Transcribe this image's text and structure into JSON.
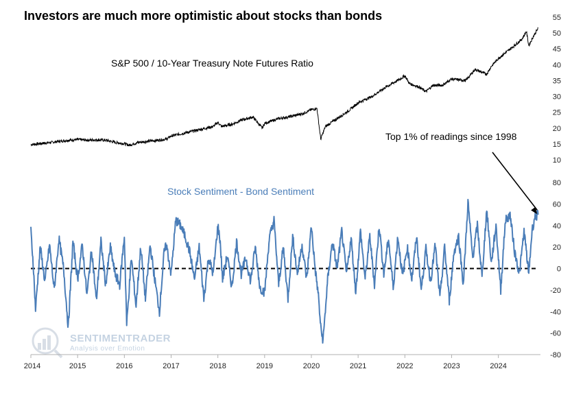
{
  "title": "Investors are much more optimistic about stocks than bonds",
  "watermark": {
    "brand": "SENTIMENTRADER",
    "tagline": "Analysis over Emotion"
  },
  "annotation": {
    "text": "Top 1% of readings since 1998",
    "arrow_target": {
      "date": 2024.83,
      "value": 48
    }
  },
  "colors": {
    "ratio": "#000000",
    "sentiment": "#4a7db8",
    "zero_line": "#000000",
    "axis": "#b0b0b0"
  },
  "chart_data": [
    {
      "type": "line",
      "label": "S&P 500 / 10-Year Treasury Note Futures Ratio",
      "x_axis": {
        "range": [
          2014,
          2024.9
        ],
        "ticks": [
          "2014",
          "2015",
          "2016",
          "2017",
          "2018",
          "2019",
          "2020",
          "2021",
          "2022",
          "2023",
          "2024"
        ]
      },
      "y_axis": {
        "side": "right",
        "range": [
          10,
          55
        ],
        "ticks": [
          10,
          15,
          20,
          25,
          30,
          35,
          40,
          45,
          50,
          55
        ]
      },
      "series": [
        {
          "x": [
            2014.0,
            2014.25,
            2014.5,
            2014.75,
            2015.0,
            2015.2,
            2015.4,
            2015.6,
            2015.8,
            2016.0,
            2016.1,
            2016.3,
            2016.6,
            2016.9,
            2017.0,
            2017.3,
            2017.6,
            2017.9,
            2018.0,
            2018.08,
            2018.3,
            2018.5,
            2018.75,
            2018.95,
            2019.0,
            2019.3,
            2019.5,
            2019.8,
            2020.0,
            2020.12,
            2020.2,
            2020.3,
            2020.5,
            2020.8,
            2021.0,
            2021.3,
            2021.6,
            2021.9,
            2022.0,
            2022.1,
            2022.3,
            2022.45,
            2022.6,
            2022.8,
            2023.0,
            2023.3,
            2023.5,
            2023.75,
            2023.85,
            2024.0,
            2024.3,
            2024.5,
            2024.6,
            2024.65,
            2024.75,
            2024.85
          ],
          "y": [
            14.8,
            15.2,
            15.6,
            16.1,
            16.4,
            16.2,
            16.3,
            16.2,
            15.5,
            15.1,
            14.6,
            15.5,
            16.0,
            16.5,
            17.5,
            18.5,
            19.5,
            20.5,
            21.8,
            20.5,
            21.2,
            22.5,
            23.5,
            20.0,
            21.5,
            23.0,
            23.5,
            24.5,
            25.8,
            26.2,
            16.5,
            20.5,
            22.5,
            25.5,
            28.0,
            30.0,
            33.0,
            35.5,
            36.5,
            34.0,
            33.0,
            31.5,
            33.5,
            33.5,
            35.5,
            35.0,
            38.5,
            37.0,
            39.5,
            42.0,
            45.5,
            48.0,
            50.5,
            46.0,
            49.0,
            51.5
          ]
        }
      ]
    },
    {
      "type": "line",
      "label": "Stock Sentiment - Bond Sentiment",
      "x_axis": {
        "range": [
          2014,
          2024.9
        ],
        "ticks": [
          "2014",
          "2015",
          "2016",
          "2017",
          "2018",
          "2019",
          "2020",
          "2021",
          "2022",
          "2023",
          "2024"
        ]
      },
      "y_axis": {
        "side": "right",
        "range": [
          -80,
          80
        ],
        "ticks": [
          -80,
          -60,
          -40,
          -20,
          0,
          20,
          40,
          60,
          80
        ]
      },
      "reference_line": {
        "y": 0,
        "style": "dashed"
      },
      "series": [
        {
          "x": [
            2014.0,
            2014.05,
            2014.1,
            2014.2,
            2014.3,
            2014.4,
            2014.5,
            2014.6,
            2014.7,
            2014.8,
            2014.9,
            2015.0,
            2015.1,
            2015.2,
            2015.3,
            2015.4,
            2015.5,
            2015.6,
            2015.7,
            2015.8,
            2015.9,
            2016.0,
            2016.05,
            2016.15,
            2016.25,
            2016.35,
            2016.45,
            2016.55,
            2016.65,
            2016.75,
            2016.85,
            2016.9,
            2017.0,
            2017.1,
            2017.2,
            2017.3,
            2017.4,
            2017.5,
            2017.6,
            2017.7,
            2017.8,
            2017.9,
            2018.0,
            2018.05,
            2018.1,
            2018.2,
            2018.3,
            2018.4,
            2018.5,
            2018.6,
            2018.7,
            2018.8,
            2018.9,
            2019.0,
            2019.1,
            2019.2,
            2019.3,
            2019.4,
            2019.5,
            2019.6,
            2019.7,
            2019.8,
            2019.9,
            2020.0,
            2020.08,
            2020.15,
            2020.2,
            2020.25,
            2020.35,
            2020.45,
            2020.55,
            2020.65,
            2020.75,
            2020.85,
            2020.95,
            2021.05,
            2021.15,
            2021.25,
            2021.35,
            2021.45,
            2021.55,
            2021.65,
            2021.75,
            2021.85,
            2021.95,
            2022.05,
            2022.15,
            2022.25,
            2022.35,
            2022.45,
            2022.55,
            2022.65,
            2022.75,
            2022.85,
            2022.95,
            2023.05,
            2023.15,
            2023.25,
            2023.35,
            2023.45,
            2023.55,
            2023.65,
            2023.75,
            2023.85,
            2023.95,
            2024.05,
            2024.15,
            2024.25,
            2024.35,
            2024.45,
            2024.55,
            2024.65,
            2024.72,
            2024.78,
            2024.85
          ],
          "y": [
            35,
            5,
            -38,
            20,
            -12,
            22,
            -20,
            28,
            0,
            -55,
            25,
            -10,
            22,
            -25,
            18,
            -30,
            25,
            -15,
            20,
            -5,
            -15,
            30,
            -52,
            10,
            -35,
            20,
            -28,
            22,
            -10,
            -40,
            15,
            22,
            -5,
            45,
            40,
            30,
            15,
            -10,
            20,
            -28,
            10,
            -5,
            40,
            25,
            -10,
            12,
            -18,
            25,
            -5,
            10,
            -12,
            20,
            -18,
            -22,
            28,
            45,
            -15,
            20,
            -28,
            30,
            -5,
            22,
            -10,
            40,
            0,
            -25,
            -55,
            -67,
            -10,
            25,
            0,
            35,
            -5,
            28,
            -22,
            35,
            -10,
            30,
            -15,
            40,
            -5,
            28,
            -18,
            30,
            -8,
            20,
            -10,
            30,
            -20,
            18,
            -12,
            22,
            -28,
            20,
            -30,
            15,
            30,
            -15,
            62,
            10,
            40,
            -8,
            55,
            5,
            40,
            -20,
            45,
            50,
            15,
            -5,
            35,
            -5,
            35,
            48,
            50
          ]
        }
      ]
    }
  ]
}
